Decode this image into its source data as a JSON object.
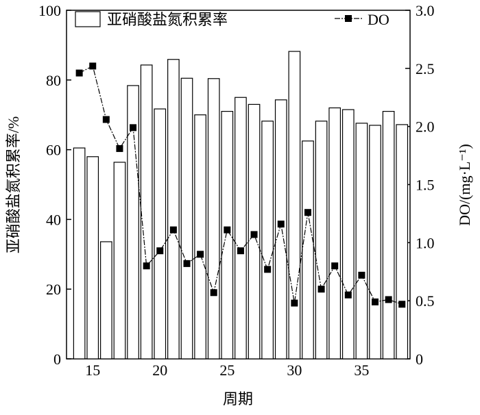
{
  "chart_data": {
    "type": "bar-line",
    "x_label": "周期",
    "y_label": "亚硝酸盐氮积累率/%",
    "y2_label": "DO/(mg·L⁻¹)",
    "x": [
      14,
      15,
      16,
      17,
      18,
      19,
      20,
      21,
      22,
      23,
      24,
      25,
      26,
      27,
      28,
      29,
      30,
      31,
      32,
      33,
      34,
      35,
      36,
      37,
      38
    ],
    "series": [
      {
        "name": "亚硝酸盐氮积累率",
        "type": "bar",
        "color": "#ffffff",
        "values": [
          60.5,
          58,
          33.6,
          56.4,
          78.4,
          84.3,
          71.7,
          85.9,
          80.5,
          70,
          80.4,
          71,
          75,
          73,
          68.2,
          74.3,
          88.2,
          62.5,
          68.2,
          72,
          71.5,
          67.6,
          67,
          71,
          67.2
        ]
      },
      {
        "name": "DO",
        "type": "line",
        "axis": "y2",
        "color": "#000000",
        "values": [
          2.46,
          2.52,
          2.06,
          1.81,
          1.99,
          0.8,
          0.93,
          1.11,
          0.82,
          0.9,
          0.57,
          1.11,
          0.93,
          1.07,
          0.77,
          1.16,
          0.48,
          1.26,
          0.6,
          0.8,
          0.55,
          0.72,
          0.49,
          0.51,
          0.47
        ]
      }
    ],
    "xlim": [
      13.05,
      38.6
    ],
    "xticks": [
      15,
      20,
      25,
      30,
      35
    ],
    "ylim": [
      0,
      100
    ],
    "yticks": [
      0,
      20,
      40,
      60,
      80,
      100
    ],
    "y2lim": [
      0,
      3.0
    ],
    "y2ticks": [
      {
        "value": 0,
        "label": "0"
      },
      {
        "value": 0.5,
        "label": "0.5"
      },
      {
        "value": 1,
        "label": "1.0"
      },
      {
        "value": 1.5,
        "label": "1.5"
      },
      {
        "value": 2,
        "label": "2.0"
      },
      {
        "value": 2.5,
        "label": "2.5"
      },
      {
        "value": 3,
        "label": "3.0"
      }
    ]
  }
}
